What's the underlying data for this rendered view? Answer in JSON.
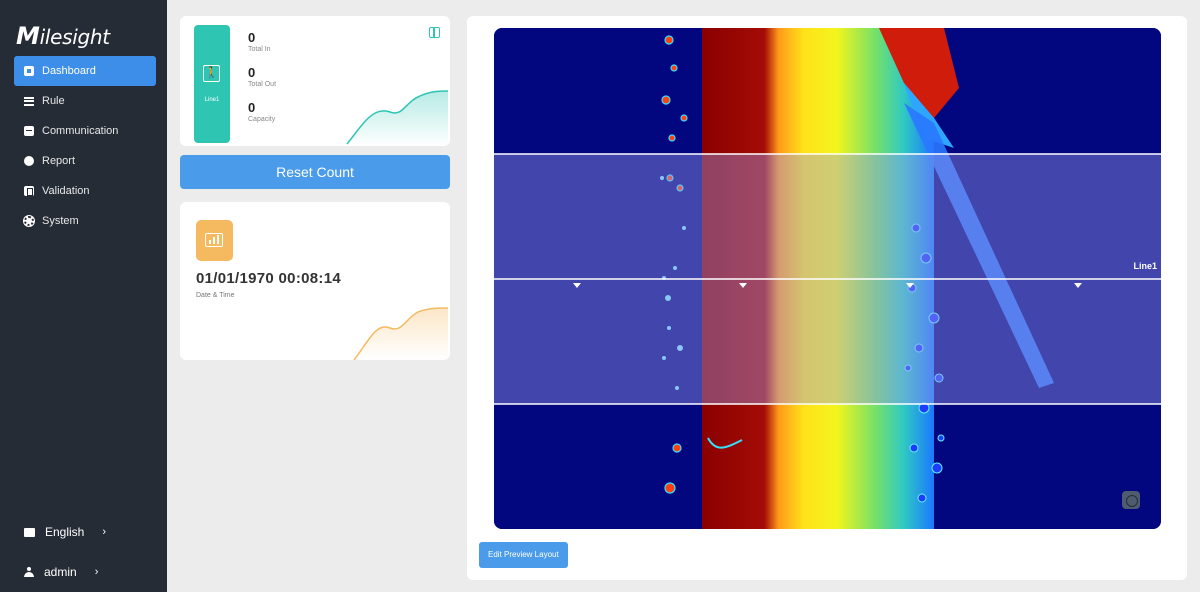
{
  "app": {
    "logo": "Milesight"
  },
  "sidebar": {
    "items": [
      {
        "label": "Dashboard",
        "icon": "dashboard-icon",
        "active": true
      },
      {
        "label": "Rule",
        "icon": "rule-icon",
        "active": false
      },
      {
        "label": "Communication",
        "icon": "communication-icon",
        "active": false
      },
      {
        "label": "Report",
        "icon": "report-icon",
        "active": false
      },
      {
        "label": "Validation",
        "icon": "validation-icon",
        "active": false
      },
      {
        "label": "System",
        "icon": "gear-icon",
        "active": false
      }
    ],
    "language": {
      "label": "English",
      "chevron": "›"
    },
    "user": {
      "label": "admin",
      "chevron": "›"
    }
  },
  "count_card": {
    "line_label": "Line1",
    "total_in": {
      "value": "0",
      "label": "Total In"
    },
    "total_out": {
      "value": "0",
      "label": "Total Out"
    },
    "capacity": {
      "value": "0",
      "label": "Capacity"
    }
  },
  "reset_button": "Reset Count",
  "date_card": {
    "value": "01/01/1970 00:08:14",
    "label": "Date & Time"
  },
  "preview": {
    "line_label": "Line1",
    "edit_button": "Edit Preview Layout"
  },
  "colors": {
    "sidebar_bg": "#262c35",
    "accent": "#3d8ee8",
    "teal": "#2ec5b3",
    "orange": "#f5b960",
    "preview_bg": "#020780"
  }
}
